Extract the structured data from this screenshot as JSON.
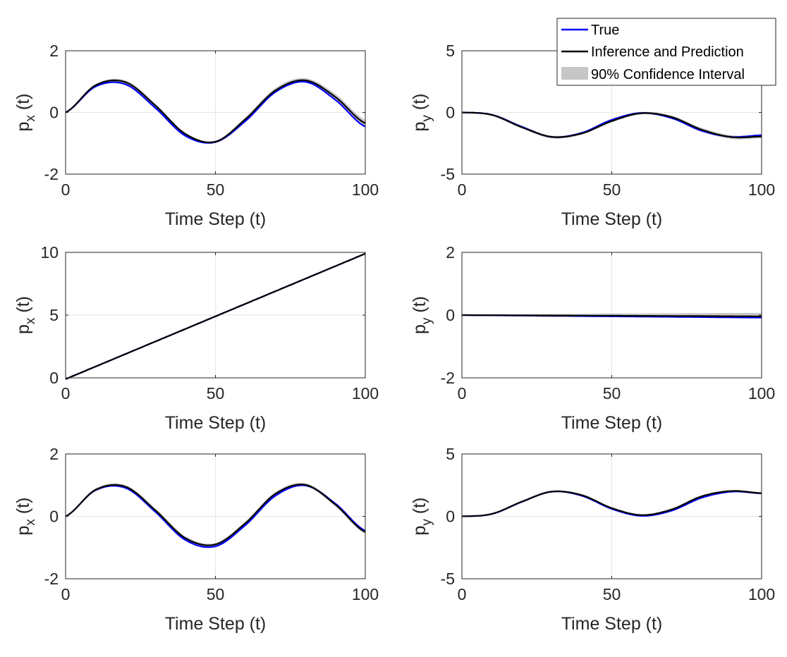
{
  "legend": {
    "true_label": "True",
    "inference_label": "Inference and Prediction",
    "ci_label": "90% Confidence Interval",
    "true_color": "#0000ff",
    "inference_color": "#000000",
    "ci_color": "#c6c6c6"
  },
  "chart_data": [
    {
      "type": "line",
      "title": "",
      "xlabel": "Time Step (t)",
      "ylabel_main": "p",
      "ylabel_sub": "x",
      "ylabel_tail": " (t)",
      "xlim": [
        0,
        100
      ],
      "ylim": [
        -2,
        2
      ],
      "xticks": [
        0,
        50,
        100
      ],
      "yticks": [
        -2,
        0,
        2
      ],
      "ytick_labels": [
        "-2",
        "0",
        "2"
      ],
      "grid": true,
      "x": [
        0,
        10,
        20,
        30,
        40,
        50,
        60,
        70,
        80,
        90,
        100
      ],
      "series": [
        {
          "name": "True",
          "values": [
            0.0,
            0.84,
            0.91,
            0.14,
            -0.76,
            -0.96,
            -0.28,
            0.66,
            0.99,
            0.41,
            -0.46
          ]
        },
        {
          "name": "Inference and Prediction",
          "values": [
            0.0,
            0.88,
            0.98,
            0.22,
            -0.7,
            -0.95,
            -0.22,
            0.71,
            1.04,
            0.5,
            -0.35
          ]
        }
      ],
      "ci_lower": [
        -0.02,
        0.84,
        0.92,
        0.16,
        -0.74,
        -0.99,
        -0.28,
        0.64,
        0.97,
        0.4,
        -0.46
      ],
      "ci_upper": [
        0.02,
        0.92,
        1.04,
        0.28,
        -0.66,
        -0.91,
        -0.16,
        0.79,
        1.11,
        0.6,
        -0.24
      ]
    },
    {
      "type": "line",
      "title": "",
      "xlabel": "Time Step (t)",
      "ylabel_main": "p",
      "ylabel_sub": "y",
      "ylabel_tail": " (t)",
      "xlim": [
        0,
        100
      ],
      "ylim": [
        -5,
        5
      ],
      "xticks": [
        0,
        50,
        100
      ],
      "yticks": [
        -5,
        0,
        5
      ],
      "ytick_labels": [
        "-5",
        "0",
        "5"
      ],
      "grid": true,
      "x": [
        0,
        10,
        20,
        30,
        40,
        50,
        60,
        70,
        80,
        90,
        100
      ],
      "series": [
        {
          "name": "True",
          "values": [
            0.0,
            -0.19,
            -1.16,
            -1.99,
            -1.65,
            -0.6,
            -0.04,
            -0.46,
            -1.49,
            -1.98,
            -1.84
          ]
        },
        {
          "name": "Inference and Prediction",
          "values": [
            0.0,
            -0.2,
            -1.2,
            -1.98,
            -1.7,
            -0.7,
            -0.06,
            -0.38,
            -1.4,
            -2.0,
            -1.95
          ]
        }
      ],
      "ci_lower": [
        -0.04,
        -0.28,
        -1.3,
        -2.1,
        -1.8,
        -0.8,
        -0.16,
        -0.5,
        -1.55,
        -2.15,
        -2.1
      ],
      "ci_upper": [
        0.04,
        -0.12,
        -1.1,
        -1.88,
        -1.6,
        -0.6,
        0.04,
        -0.26,
        -1.25,
        -1.85,
        -1.8
      ]
    },
    {
      "type": "line",
      "title": "",
      "xlabel": "Time Step (t)",
      "ylabel_main": "p",
      "ylabel_sub": "x",
      "ylabel_tail": " (t)",
      "xlim": [
        0,
        100
      ],
      "ylim": [
        0,
        10
      ],
      "xticks": [
        0,
        50,
        100
      ],
      "yticks": [
        0,
        5,
        10
      ],
      "ytick_labels": [
        "0",
        "5",
        "10"
      ],
      "grid": true,
      "x": [
        0,
        100
      ],
      "series": [
        {
          "name": "True",
          "values": [
            -0.1,
            9.9
          ]
        },
        {
          "name": "Inference and Prediction",
          "values": [
            -0.1,
            9.9
          ]
        }
      ],
      "ci_lower": [
        -0.14,
        9.86
      ],
      "ci_upper": [
        -0.06,
        9.94
      ]
    },
    {
      "type": "line",
      "title": "",
      "xlabel": "Time Step (t)",
      "ylabel_main": "p",
      "ylabel_sub": "y",
      "ylabel_tail": " (t)",
      "xlim": [
        0,
        100
      ],
      "ylim": [
        -2,
        2
      ],
      "xticks": [
        0,
        50,
        100
      ],
      "yticks": [
        -2,
        0,
        2
      ],
      "ytick_labels": [
        "-2",
        "0",
        "2"
      ],
      "grid": true,
      "x": [
        0,
        25,
        50,
        75,
        100
      ],
      "series": [
        {
          "name": "True",
          "values": [
            0.0,
            -0.02,
            -0.04,
            -0.06,
            -0.08
          ]
        },
        {
          "name": "Inference and Prediction",
          "values": [
            0.0,
            -0.01,
            -0.02,
            -0.03,
            -0.04
          ]
        }
      ],
      "ci_lower": [
        -0.02,
        -0.04,
        -0.06,
        -0.08,
        -0.1
      ],
      "ci_upper": [
        0.02,
        0.03,
        0.05,
        0.06,
        0.07
      ]
    },
    {
      "type": "line",
      "title": "",
      "xlabel": "Time Step (t)",
      "ylabel_main": "p",
      "ylabel_sub": "x",
      "ylabel_tail": " (t)",
      "xlim": [
        0,
        100
      ],
      "ylim": [
        -2,
        2
      ],
      "xticks": [
        0,
        50,
        100
      ],
      "yticks": [
        -2,
        0,
        2
      ],
      "ytick_labels": [
        "-2",
        "0",
        "2"
      ],
      "grid": true,
      "x": [
        0,
        10,
        20,
        30,
        40,
        50,
        60,
        70,
        80,
        90,
        100
      ],
      "series": [
        {
          "name": "True",
          "values": [
            0.0,
            0.84,
            0.91,
            0.14,
            -0.76,
            -0.96,
            -0.28,
            0.66,
            0.99,
            0.41,
            -0.46
          ]
        },
        {
          "name": "Inference and Prediction",
          "values": [
            0.0,
            0.85,
            0.95,
            0.19,
            -0.7,
            -0.9,
            -0.22,
            0.72,
            1.01,
            0.38,
            -0.5
          ]
        }
      ],
      "ci_lower": [
        -0.02,
        0.8,
        0.9,
        0.13,
        -0.76,
        -0.95,
        -0.28,
        0.66,
        0.96,
        0.32,
        -0.56
      ],
      "ci_upper": [
        0.02,
        0.9,
        1.0,
        0.25,
        -0.64,
        -0.85,
        -0.16,
        0.78,
        1.06,
        0.44,
        -0.44
      ]
    },
    {
      "type": "line",
      "title": "",
      "xlabel": "Time Step (t)",
      "ylabel_main": "p",
      "ylabel_sub": "y",
      "ylabel_tail": " (t)",
      "xlim": [
        0,
        100
      ],
      "ylim": [
        -5,
        5
      ],
      "xticks": [
        0,
        50,
        100
      ],
      "yticks": [
        -5,
        0,
        5
      ],
      "ytick_labels": [
        "-5",
        "0",
        "5"
      ],
      "grid": true,
      "x": [
        0,
        10,
        20,
        30,
        40,
        50,
        60,
        70,
        80,
        90,
        100
      ],
      "series": [
        {
          "name": "True",
          "values": [
            0.0,
            0.19,
            1.16,
            1.99,
            1.65,
            0.6,
            0.04,
            0.46,
            1.49,
            1.98,
            1.84
          ]
        },
        {
          "name": "Inference and Prediction",
          "values": [
            0.0,
            0.2,
            1.18,
            1.98,
            1.7,
            0.66,
            0.1,
            0.55,
            1.6,
            2.03,
            1.86
          ]
        }
      ],
      "ci_lower": [
        -0.04,
        0.14,
        1.1,
        1.9,
        1.62,
        0.58,
        0.02,
        0.45,
        1.5,
        1.95,
        1.78
      ],
      "ci_upper": [
        0.04,
        0.26,
        1.26,
        2.06,
        1.78,
        0.74,
        0.18,
        0.65,
        1.7,
        2.11,
        1.94
      ]
    }
  ]
}
